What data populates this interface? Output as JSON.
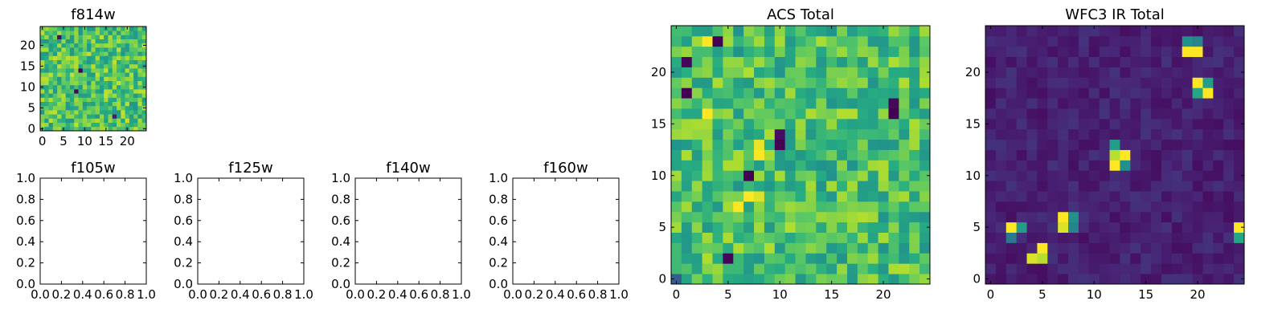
{
  "figure": {
    "panels": [
      {
        "id": "f814w",
        "title": "f814w",
        "kind": "image",
        "x_ticks": [
          "0",
          "5",
          "10",
          "15",
          "20"
        ],
        "y_ticks": [
          "0",
          "5",
          "10",
          "15",
          "20"
        ]
      },
      {
        "id": "f105w",
        "title": "f105w",
        "kind": "empty",
        "x_ticks": [
          "0.0",
          "0.2",
          "0.4",
          "0.6",
          "0.8",
          "1.0"
        ],
        "y_ticks": [
          "0.0",
          "0.2",
          "0.4",
          "0.6",
          "0.8",
          "1.0"
        ]
      },
      {
        "id": "f125w",
        "title": "f125w",
        "kind": "empty",
        "x_ticks": [
          "0.0",
          "0.2",
          "0.4",
          "0.6",
          "0.8",
          "1.0"
        ],
        "y_ticks": [
          "0.0",
          "0.2",
          "0.4",
          "0.6",
          "0.8",
          "1.0"
        ]
      },
      {
        "id": "f140w",
        "title": "f140w",
        "kind": "empty",
        "x_ticks": [
          "0.0",
          "0.2",
          "0.4",
          "0.6",
          "0.8",
          "1.0"
        ],
        "y_ticks": [
          "0.0",
          "0.2",
          "0.4",
          "0.6",
          "0.8",
          "1.0"
        ]
      },
      {
        "id": "f160w",
        "title": "f160w",
        "kind": "empty",
        "x_ticks": [
          "0.0",
          "0.2",
          "0.4",
          "0.6",
          "0.8",
          "1.0"
        ],
        "y_ticks": [
          "0.0",
          "0.2",
          "0.4",
          "0.6",
          "0.8",
          "1.0"
        ]
      },
      {
        "id": "acs-total",
        "title": "ACS Total",
        "kind": "image",
        "x_ticks": [
          "0",
          "5",
          "10",
          "15",
          "20"
        ],
        "y_ticks": [
          "0",
          "5",
          "10",
          "15",
          "20"
        ]
      },
      {
        "id": "wfc3-ir-total",
        "title": "WFC3 IR Total",
        "kind": "image",
        "x_ticks": [
          "0",
          "5",
          "10",
          "15",
          "20"
        ],
        "y_ticks": [
          "0",
          "5",
          "10",
          "15",
          "20"
        ]
      }
    ]
  },
  "chart_data": [
    {
      "type": "heatmap",
      "title": "f814w",
      "grid_size": [
        25,
        25
      ],
      "xlim": [
        -0.5,
        24.5
      ],
      "ylim": [
        -0.5,
        24.5
      ],
      "origin": "lower",
      "colormap": "viridis",
      "value_range": [
        0,
        1
      ],
      "pattern": "uniform-noise",
      "mean": 0.72,
      "spread": 0.2,
      "seed": 814,
      "features": [
        {
          "x": 9,
          "y": 14,
          "value": 0.0
        },
        {
          "x": 8,
          "y": 9,
          "value": 0.02
        },
        {
          "x": 4,
          "y": 22,
          "value": 0.05
        },
        {
          "x": 17,
          "y": 3,
          "value": 0.1
        }
      ]
    },
    {
      "type": "empty",
      "title": "f105w",
      "xlim": [
        0,
        1
      ],
      "ylim": [
        0,
        1
      ]
    },
    {
      "type": "empty",
      "title": "f125w",
      "xlim": [
        0,
        1
      ],
      "ylim": [
        0,
        1
      ]
    },
    {
      "type": "empty",
      "title": "f140w",
      "xlim": [
        0,
        1
      ],
      "ylim": [
        0,
        1
      ]
    },
    {
      "type": "empty",
      "title": "f160w",
      "xlim": [
        0,
        1
      ],
      "ylim": [
        0,
        1
      ]
    },
    {
      "type": "heatmap",
      "title": "ACS Total",
      "grid_size": [
        25,
        25
      ],
      "xlim": [
        -0.5,
        24.5
      ],
      "ylim": [
        -0.5,
        24.5
      ],
      "origin": "lower",
      "colormap": "viridis",
      "value_range": [
        0,
        1
      ],
      "pattern": "uniform-noise",
      "mean": 0.7,
      "spread": 0.19,
      "seed": 1234,
      "features": [
        {
          "x": 4,
          "y": 23,
          "value": 0.0
        },
        {
          "x": 3,
          "y": 23,
          "value": 1.0
        },
        {
          "x": 1,
          "y": 21,
          "value": 0.02
        },
        {
          "x": 1,
          "y": 18,
          "value": 0.0
        },
        {
          "x": 21,
          "y": 16,
          "value": 0.0
        },
        {
          "x": 21,
          "y": 17,
          "value": 0.03
        },
        {
          "x": 10,
          "y": 14,
          "value": 0.05
        },
        {
          "x": 10,
          "y": 13,
          "value": 0.0
        },
        {
          "x": 7,
          "y": 10,
          "value": 0.0
        },
        {
          "x": 5,
          "y": 2,
          "value": 0.02
        },
        {
          "x": 8,
          "y": 13,
          "value": 0.97
        },
        {
          "x": 8,
          "y": 12,
          "value": 1.0
        },
        {
          "x": 3,
          "y": 16,
          "value": 1.0
        },
        {
          "x": 7,
          "y": 8,
          "value": 1.0
        },
        {
          "x": 8,
          "y": 8,
          "value": 0.95
        },
        {
          "x": 6,
          "y": 7,
          "value": 1.0
        },
        {
          "x": 0,
          "y": 0,
          "value": 0.3
        }
      ]
    },
    {
      "type": "heatmap",
      "title": "WFC3 IR Total",
      "grid_size": [
        25,
        25
      ],
      "xlim": [
        -0.5,
        24.5
      ],
      "ylim": [
        -0.5,
        24.5
      ],
      "origin": "lower",
      "colormap": "viridis",
      "value_range": [
        0,
        1
      ],
      "pattern": "uniform-noise",
      "mean": 0.11,
      "spread": 0.06,
      "seed": 42,
      "features": [
        {
          "x": 19,
          "y": 22,
          "value": 1.0
        },
        {
          "x": 20,
          "y": 22,
          "value": 1.0
        },
        {
          "x": 19,
          "y": 23,
          "value": 0.5
        },
        {
          "x": 20,
          "y": 23,
          "value": 0.45
        },
        {
          "x": 20,
          "y": 19,
          "value": 1.0
        },
        {
          "x": 21,
          "y": 18,
          "value": 1.0
        },
        {
          "x": 21,
          "y": 19,
          "value": 0.55
        },
        {
          "x": 20,
          "y": 18,
          "value": 0.6
        },
        {
          "x": 12,
          "y": 12,
          "value": 0.9
        },
        {
          "x": 13,
          "y": 12,
          "value": 1.0
        },
        {
          "x": 12,
          "y": 13,
          "value": 0.55
        },
        {
          "x": 12,
          "y": 11,
          "value": 1.0
        },
        {
          "x": 13,
          "y": 11,
          "value": 0.5
        },
        {
          "x": 2,
          "y": 5,
          "value": 1.0
        },
        {
          "x": 3,
          "y": 5,
          "value": 0.55
        },
        {
          "x": 2,
          "y": 4,
          "value": 0.4
        },
        {
          "x": 7,
          "y": 6,
          "value": 1.0
        },
        {
          "x": 7,
          "y": 5,
          "value": 0.95
        },
        {
          "x": 8,
          "y": 6,
          "value": 0.5
        },
        {
          "x": 8,
          "y": 5,
          "value": 0.45
        },
        {
          "x": 5,
          "y": 3,
          "value": 1.0
        },
        {
          "x": 5,
          "y": 2,
          "value": 0.9
        },
        {
          "x": 4,
          "y": 2,
          "value": 0.95
        },
        {
          "x": 24,
          "y": 5,
          "value": 1.0
        },
        {
          "x": 24,
          "y": 4,
          "value": 0.6
        }
      ]
    }
  ]
}
